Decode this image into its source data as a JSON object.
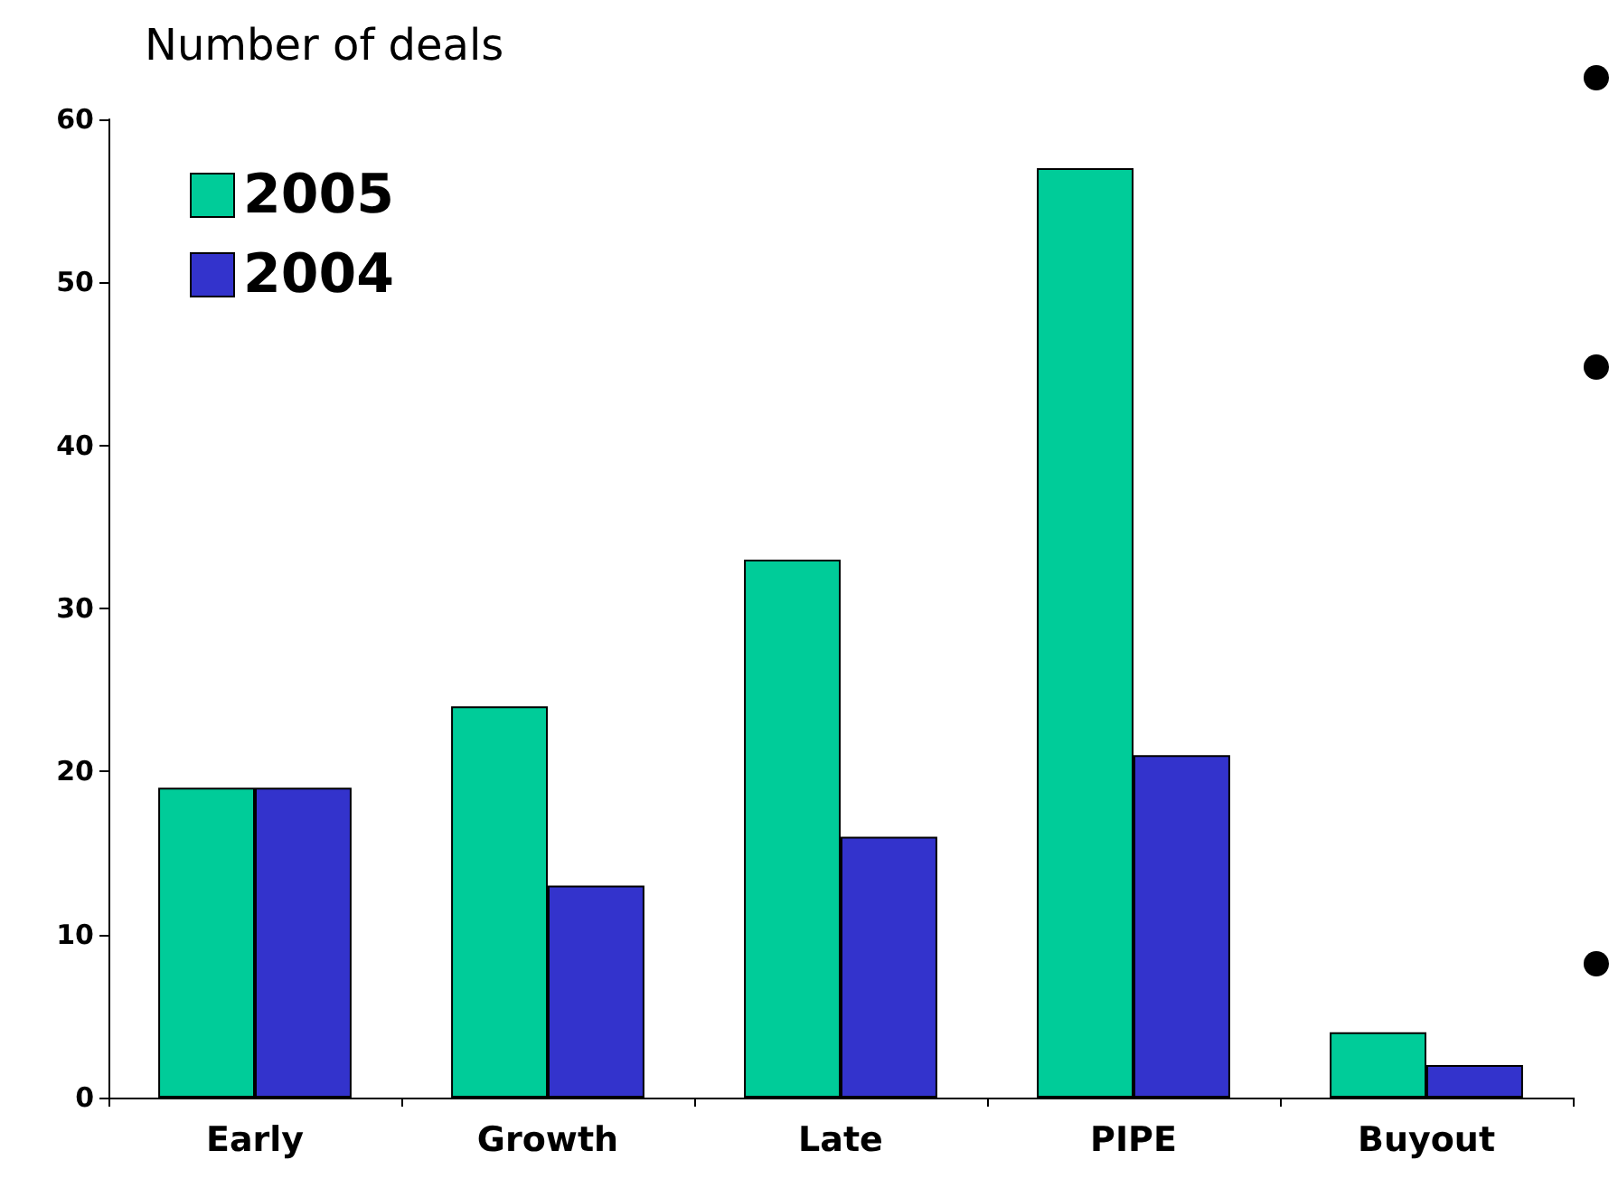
{
  "chart_data": {
    "type": "bar",
    "ylabel": "Number of deals",
    "categories": [
      "Early",
      "Growth",
      "Late",
      "PIPE",
      "Buyout"
    ],
    "series": [
      {
        "name": "2005",
        "color": "#00cc99",
        "values": [
          19,
          24,
          33,
          57,
          4
        ]
      },
      {
        "name": "2004",
        "color": "#3333cc",
        "values": [
          19,
          13,
          16,
          21,
          2
        ]
      }
    ],
    "ylim": [
      0,
      60
    ],
    "yticks": [
      0,
      10,
      20,
      30,
      40,
      50,
      60
    ],
    "grid": false,
    "legend": "top left"
  }
}
